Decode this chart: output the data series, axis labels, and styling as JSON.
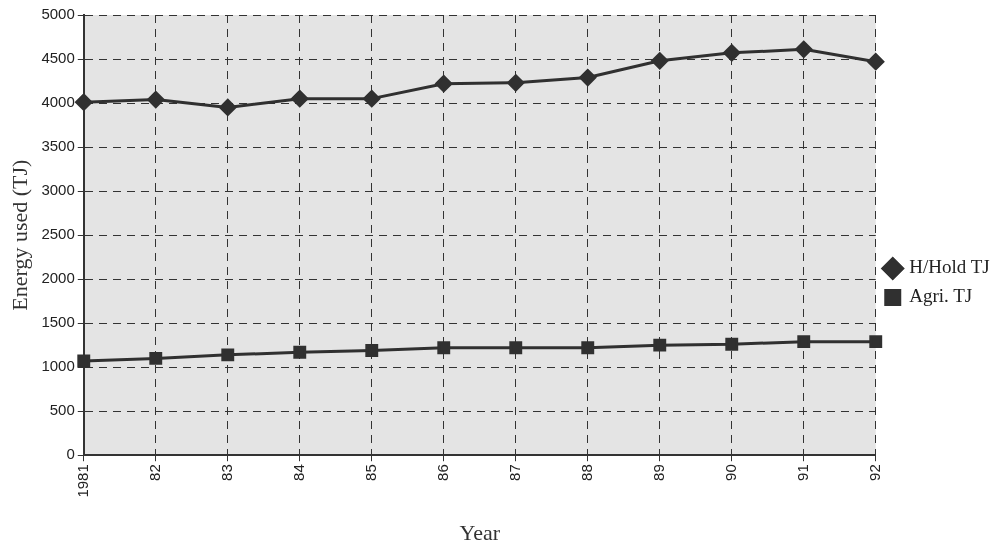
{
  "chart_data": {
    "type": "line",
    "xlabel": "Year",
    "ylabel": "Energy used (TJ)",
    "categories": [
      "1981",
      "82",
      "83",
      "84",
      "85",
      "86",
      "87",
      "88",
      "89",
      "90",
      "91",
      "92"
    ],
    "series": [
      {
        "name": "H/Hold TJ",
        "color": "#303030",
        "marker": "diamond",
        "values": [
          4010,
          4040,
          3950,
          4050,
          4050,
          4220,
          4230,
          4290,
          4480,
          4570,
          4610,
          4470
        ]
      },
      {
        "name": "Agri. TJ",
        "color": "#303030",
        "marker": "square",
        "values": [
          1070,
          1100,
          1140,
          1170,
          1190,
          1220,
          1220,
          1220,
          1250,
          1260,
          1290,
          1290
        ]
      }
    ],
    "ylim": [
      0,
      5000
    ],
    "yticks": [
      0,
      500,
      1000,
      1500,
      2000,
      2500,
      3000,
      3500,
      4000,
      4500,
      5000
    ],
    "grid": true,
    "legend": "right",
    "line_style": "solid"
  }
}
